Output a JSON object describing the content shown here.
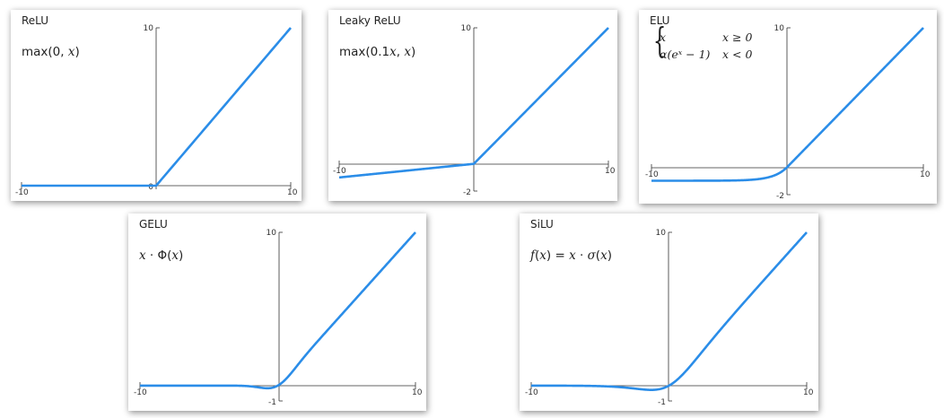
{
  "curve_color": "#2b8de8",
  "chart_data": [
    {
      "id": "relu",
      "type": "line",
      "title": "ReLU",
      "formula": {
        "parts": [
          "max(0, ",
          "x",
          ")"
        ]
      },
      "xlim": [
        -10,
        10
      ],
      "ylim": [
        0,
        10
      ],
      "ticks": {
        "x_left": "-10",
        "x_right": "10",
        "y_top": "10",
        "y_bottom": "0"
      },
      "series": [
        {
          "function": "relu",
          "x": [
            -10,
            -8,
            -6,
            -4,
            -2,
            0,
            2,
            4,
            6,
            8,
            10
          ],
          "y": [
            0,
            0,
            0,
            0,
            0,
            0,
            2,
            4,
            6,
            8,
            10
          ]
        }
      ]
    },
    {
      "id": "leaky-relu",
      "type": "line",
      "title": "Leaky ReLU",
      "formula": {
        "parts": [
          "max(0.1",
          "x",
          ", ",
          "x",
          ")"
        ]
      },
      "xlim": [
        -10,
        10
      ],
      "ylim": [
        -2,
        10
      ],
      "ticks": {
        "x_left": "-10",
        "x_right": "10",
        "y_top": "10",
        "y_bottom": "-2"
      },
      "series": [
        {
          "function": "leaky_relu",
          "x": [
            -10,
            -8,
            -6,
            -4,
            -2,
            0,
            2,
            4,
            6,
            8,
            10
          ],
          "y": [
            -1,
            -0.8,
            -0.6,
            -0.4,
            -0.2,
            0,
            2,
            4,
            6,
            8,
            10
          ]
        }
      ]
    },
    {
      "id": "elu",
      "type": "line",
      "title": "ELU",
      "formula": {
        "cases": [
          {
            "expr": "x",
            "cond": "x ≥ 0"
          },
          {
            "expr": "α(eˣ − 1)",
            "cond": "x < 0"
          }
        ]
      },
      "xlim": [
        -10,
        10
      ],
      "ylim": [
        -2,
        10
      ],
      "ticks": {
        "x_left": "-10",
        "x_right": "10",
        "y_top": "10",
        "y_bottom": "-2"
      },
      "series": [
        {
          "function": "elu",
          "x": [
            -10,
            -8,
            -6,
            -4,
            -2,
            -1,
            0,
            2,
            4,
            6,
            8,
            10
          ],
          "y": [
            -1,
            -1,
            -0.98,
            -0.98,
            -0.86,
            -0.63,
            0,
            2,
            4,
            6,
            8,
            10
          ]
        }
      ]
    },
    {
      "id": "gelu",
      "type": "line",
      "title": "GELU",
      "formula": {
        "parts": [
          "x",
          " · Φ(",
          "x",
          ")"
        ]
      },
      "xlim": [
        -10,
        10
      ],
      "ylim": [
        -1,
        10
      ],
      "ticks": {
        "x_left": "-10",
        "x_right": "10",
        "y_top": "10",
        "y_bottom": "-1"
      },
      "series": [
        {
          "function": "gelu",
          "x": [
            -10,
            -6,
            -3,
            -2,
            -1,
            -0.5,
            0,
            1,
            2,
            4,
            6,
            8,
            10
          ],
          "y": [
            0,
            0,
            -0.004,
            -0.05,
            -0.16,
            -0.15,
            0,
            0.84,
            1.95,
            4,
            6,
            8,
            10
          ]
        }
      ]
    },
    {
      "id": "silu",
      "type": "line",
      "title": "SiLU",
      "formula": {
        "parts": [
          "f",
          "(",
          "x",
          ") = ",
          "x",
          " · ",
          "σ",
          "(",
          "x",
          ")"
        ]
      },
      "xlim": [
        -10,
        10
      ],
      "ylim": [
        -1,
        10
      ],
      "ticks": {
        "x_left": "-10",
        "x_right": "10",
        "y_top": "10",
        "y_bottom": "-1"
      },
      "series": [
        {
          "function": "silu",
          "x": [
            -10,
            -6,
            -4,
            -2,
            -1,
            0,
            1,
            2,
            4,
            6,
            8,
            10
          ],
          "y": [
            0,
            -0.01,
            -0.07,
            -0.24,
            -0.27,
            0,
            0.73,
            1.76,
            3.93,
            5.99,
            8,
            10
          ]
        }
      ]
    }
  ]
}
